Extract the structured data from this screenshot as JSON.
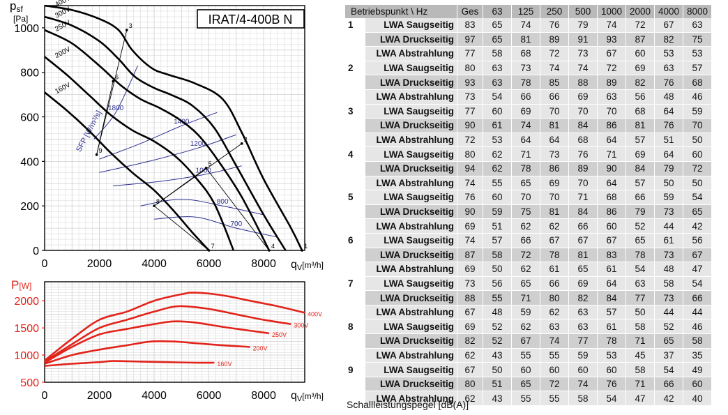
{
  "chart_data": [
    {
      "type": "line",
      "title": "IRAT/4-400B N",
      "ylabel_main": "p",
      "ylabel_sub": "sf",
      "ylabel_unit": "[Pa]",
      "xlabel_main": "q",
      "xlabel_sub": "V",
      "xlabel_unit": "[m³/h]",
      "xlim": [
        0,
        9500
      ],
      "ylim": [
        0,
        1100
      ],
      "xticks": [
        0,
        2000,
        4000,
        6000,
        8000
      ],
      "yticks": [
        0,
        200,
        400,
        600,
        800,
        1000
      ],
      "grid": true,
      "series": [
        {
          "name": "400V",
          "x": [
            0,
            1000,
            2000,
            2700,
            3200,
            3900,
            4500,
            5500,
            6500,
            7200,
            8000,
            9000,
            9400
          ],
          "y": [
            1100,
            1080,
            1040,
            990,
            900,
            820,
            790,
            750,
            680,
            530,
            320,
            100,
            0
          ]
        },
        {
          "name": "300V",
          "x": [
            0,
            1000,
            2000,
            2700,
            3300,
            4000,
            4600,
            5400,
            6200,
            7000,
            8000,
            8800
          ],
          "y": [
            1050,
            1010,
            940,
            860,
            780,
            730,
            700,
            650,
            550,
            380,
            160,
            0
          ]
        },
        {
          "name": "250V",
          "x": [
            0,
            1000,
            2000,
            2800,
            3500,
            4200,
            4900,
            5600,
            6300,
            7200,
            8200
          ],
          "y": [
            990,
            930,
            830,
            740,
            680,
            640,
            590,
            520,
            410,
            240,
            0
          ]
        },
        {
          "name": "200V",
          "x": [
            0,
            800,
            1600,
            2400,
            3200,
            4000,
            4800,
            5500,
            6200,
            6900
          ],
          "y": [
            870,
            790,
            700,
            610,
            540,
            490,
            420,
            330,
            210,
            0
          ]
        },
        {
          "name": "160V",
          "x": [
            0,
            800,
            1600,
            2400,
            3200,
            4000,
            4700,
            5400,
            6000
          ],
          "y": [
            710,
            630,
            540,
            440,
            350,
            270,
            180,
            80,
            0
          ]
        }
      ],
      "sfp_label": "SFP [W/m³/s]",
      "sfp_lines": [
        {
          "label": "1800",
          "x": [
            1800,
            2600,
            3400
          ],
          "y": [
            500,
            620,
            830
          ]
        },
        {
          "label": "1400",
          "x": [
            2000,
            3500,
            5000,
            6300
          ],
          "y": [
            410,
            480,
            560,
            620
          ]
        },
        {
          "label": "1200",
          "x": [
            2000,
            3800,
            5600,
            7000
          ],
          "y": [
            350,
            400,
            460,
            520
          ]
        },
        {
          "label": "1000",
          "x": [
            2500,
            4200,
            5800,
            7200
          ],
          "y": [
            290,
            310,
            340,
            380
          ]
        },
        {
          "label": "800",
          "x": [
            3500,
            5000,
            6500,
            8000
          ],
          "y": [
            200,
            230,
            200,
            160
          ]
        },
        {
          "label": "700",
          "x": [
            4000,
            5500,
            7000,
            8500
          ],
          "y": [
            140,
            150,
            100,
            60
          ]
        }
      ],
      "operating_points": [
        {
          "label": "1",
          "x": 9400,
          "y": 0
        },
        {
          "label": "2",
          "x": 7200,
          "y": 480
        },
        {
          "label": "3",
          "x": 3000,
          "y": 990
        },
        {
          "label": "4",
          "x": 8200,
          "y": 0
        },
        {
          "label": "5",
          "x": 5900,
          "y": 370
        },
        {
          "label": "6",
          "x": 2500,
          "y": 760
        },
        {
          "label": "7",
          "x": 6000,
          "y": 0
        },
        {
          "label": "8",
          "x": 4000,
          "y": 200
        },
        {
          "label": "9",
          "x": 1900,
          "y": 430
        }
      ]
    },
    {
      "type": "line",
      "ylabel_main": "P",
      "ylabel_unit": "[W]",
      "xlabel_main": "q",
      "xlabel_sub": "V",
      "xlabel_unit": "[m³/h]",
      "xlim": [
        0,
        9500
      ],
      "ylim": [
        500,
        2350
      ],
      "xticks": [
        0,
        2000,
        4000,
        6000,
        8000
      ],
      "yticks": [
        500,
        1000,
        1500,
        2000
      ],
      "grid": true,
      "color": "#e2231a",
      "series": [
        {
          "name": "400V",
          "x": [
            0,
            1000,
            2000,
            3000,
            4000,
            5000,
            5500,
            6500,
            7500,
            8500,
            9500
          ],
          "y": [
            900,
            1300,
            1650,
            1800,
            2000,
            2120,
            2150,
            2100,
            2000,
            1900,
            1780
          ]
        },
        {
          "name": "300V",
          "x": [
            0,
            1000,
            2000,
            3000,
            4000,
            4900,
            6000,
            7000,
            8000,
            9000
          ],
          "y": [
            880,
            1200,
            1500,
            1650,
            1800,
            1900,
            1850,
            1750,
            1650,
            1570
          ]
        },
        {
          "name": "250V",
          "x": [
            0,
            1000,
            2000,
            3000,
            4000,
            4700,
            5500,
            6500,
            7500,
            8200
          ],
          "y": [
            860,
            1150,
            1380,
            1480,
            1570,
            1620,
            1600,
            1520,
            1450,
            1400
          ]
        },
        {
          "name": "200V",
          "x": [
            0,
            1000,
            2000,
            3000,
            3900,
            4700,
            5500,
            6500,
            7500
          ],
          "y": [
            840,
            1000,
            1100,
            1180,
            1250,
            1250,
            1220,
            1180,
            1150
          ]
        },
        {
          "name": "160V",
          "x": [
            0,
            1000,
            2000,
            2500,
            3500,
            4500,
            5500,
            6200
          ],
          "y": [
            800,
            840,
            870,
            890,
            880,
            870,
            860,
            860
          ]
        }
      ]
    },
    {
      "type": "table",
      "columns": [
        "Betriebspunkt \\ Hz",
        "Ges",
        "63",
        "125",
        "250",
        "500",
        "1000",
        "2000",
        "4000",
        "8000"
      ],
      "groups": [
        {
          "point": "1",
          "rows": [
            {
              "label": "LWA Saugseitig",
              "values": [
                "83",
                "65",
                "74",
                "76",
                "79",
                "74",
                "72",
                "67",
                "63"
              ]
            },
            {
              "label": "LWA Druckseitig",
              "values": [
                "97",
                "65",
                "81",
                "89",
                "91",
                "93",
                "87",
                "82",
                "75"
              ]
            },
            {
              "label": "LWA Abstrahlung",
              "values": [
                "77",
                "58",
                "68",
                "72",
                "73",
                "67",
                "60",
                "53",
                "53"
              ]
            }
          ]
        },
        {
          "point": "2",
          "rows": [
            {
              "label": "LWA Saugseitig",
              "values": [
                "80",
                "63",
                "73",
                "74",
                "74",
                "72",
                "69",
                "63",
                "57"
              ]
            },
            {
              "label": "LWA Druckseitig",
              "values": [
                "93",
                "63",
                "78",
                "85",
                "88",
                "89",
                "82",
                "76",
                "68"
              ]
            },
            {
              "label": "LWA Abstrahlung",
              "values": [
                "73",
                "54",
                "66",
                "66",
                "69",
                "63",
                "56",
                "48",
                "46"
              ]
            }
          ]
        },
        {
          "point": "3",
          "rows": [
            {
              "label": "LWA Saugseitig",
              "values": [
                "77",
                "60",
                "69",
                "70",
                "70",
                "70",
                "68",
                "64",
                "59"
              ]
            },
            {
              "label": "LWA Druckseitig",
              "values": [
                "90",
                "61",
                "74",
                "81",
                "84",
                "86",
                "81",
                "76",
                "70"
              ]
            },
            {
              "label": "LWA Abstrahlung",
              "values": [
                "72",
                "53",
                "64",
                "64",
                "68",
                "64",
                "57",
                "51",
                "50"
              ]
            }
          ]
        },
        {
          "point": "4",
          "rows": [
            {
              "label": "LWA Saugseitig",
              "values": [
                "80",
                "62",
                "71",
                "73",
                "76",
                "71",
                "69",
                "64",
                "60"
              ]
            },
            {
              "label": "LWA Druckseitig",
              "values": [
                "94",
                "62",
                "78",
                "86",
                "89",
                "90",
                "84",
                "79",
                "72"
              ]
            },
            {
              "label": "LWA Abstrahlung",
              "values": [
                "74",
                "55",
                "65",
                "69",
                "70",
                "64",
                "57",
                "50",
                "50"
              ]
            }
          ]
        },
        {
          "point": "5",
          "rows": [
            {
              "label": "LWA Saugseitig",
              "values": [
                "76",
                "60",
                "70",
                "70",
                "71",
                "68",
                "66",
                "59",
                "54"
              ]
            },
            {
              "label": "LWA Druckseitig",
              "values": [
                "90",
                "59",
                "75",
                "81",
                "84",
                "86",
                "79",
                "73",
                "65"
              ]
            },
            {
              "label": "LWA Abstrahlung",
              "values": [
                "69",
                "51",
                "62",
                "62",
                "66",
                "60",
                "52",
                "44",
                "42"
              ]
            }
          ]
        },
        {
          "point": "6",
          "rows": [
            {
              "label": "LWA Saugseitig",
              "values": [
                "74",
                "57",
                "66",
                "67",
                "67",
                "67",
                "65",
                "61",
                "56"
              ]
            },
            {
              "label": "LWA Druckseitig",
              "values": [
                "87",
                "58",
                "72",
                "78",
                "81",
                "83",
                "78",
                "73",
                "67"
              ]
            },
            {
              "label": "LWA Abstrahlung",
              "values": [
                "69",
                "50",
                "62",
                "61",
                "65",
                "61",
                "54",
                "48",
                "47"
              ]
            }
          ]
        },
        {
          "point": "7",
          "rows": [
            {
              "label": "LWA Saugseitig",
              "values": [
                "73",
                "56",
                "65",
                "66",
                "69",
                "64",
                "63",
                "58",
                "54"
              ]
            },
            {
              "label": "LWA Druckseitig",
              "values": [
                "88",
                "55",
                "71",
                "80",
                "82",
                "84",
                "77",
                "73",
                "66"
              ]
            },
            {
              "label": "LWA Abstrahlung",
              "values": [
                "67",
                "48",
                "59",
                "62",
                "63",
                "57",
                "50",
                "44",
                "44"
              ]
            }
          ]
        },
        {
          "point": "8",
          "rows": [
            {
              "label": "LWA Saugseitig",
              "values": [
                "69",
                "52",
                "62",
                "63",
                "63",
                "61",
                "58",
                "52",
                "46"
              ]
            },
            {
              "label": "LWA Druckseitig",
              "values": [
                "82",
                "52",
                "67",
                "74",
                "77",
                "78",
                "71",
                "65",
                "58"
              ]
            },
            {
              "label": "LWA Abstrahlung",
              "values": [
                "62",
                "43",
                "55",
                "55",
                "59",
                "53",
                "45",
                "37",
                "35"
              ]
            }
          ]
        },
        {
          "point": "9",
          "rows": [
            {
              "label": "LWA Saugseitig",
              "values": [
                "67",
                "50",
                "60",
                "60",
                "60",
                "60",
                "58",
                "54",
                "49"
              ]
            },
            {
              "label": "LWA Druckseitig",
              "values": [
                "80",
                "51",
                "65",
                "72",
                "74",
                "76",
                "71",
                "66",
                "60"
              ]
            },
            {
              "label": "LWA Abstrahlung",
              "values": [
                "62",
                "43",
                "55",
                "55",
                "58",
                "54",
                "47",
                "42",
                "40"
              ]
            }
          ]
        }
      ]
    }
  ],
  "footnote": "Schallleistungspegel [dB(A)]"
}
